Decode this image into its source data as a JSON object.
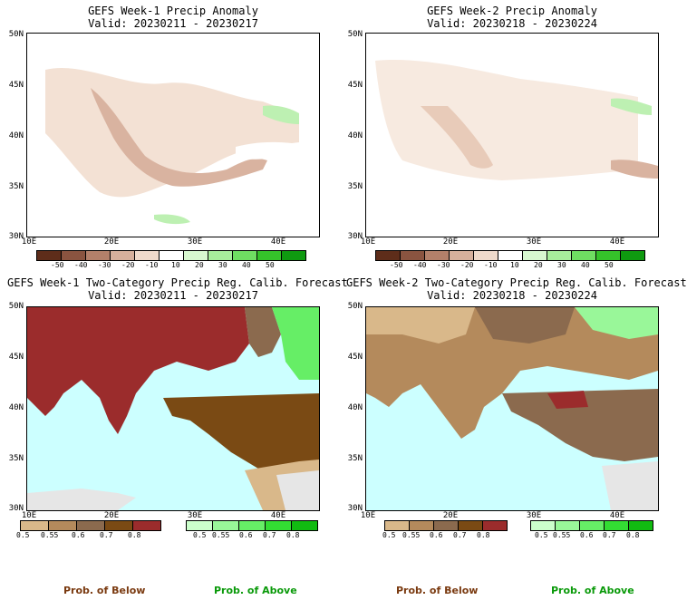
{
  "panels": [
    {
      "title": "GEFS Week-1 Precip Anomaly",
      "valid": "Valid: 20230211 - 20230217"
    },
    {
      "title": "GEFS Week-2 Precip Anomaly",
      "valid": "Valid: 20230218 - 20230224"
    },
    {
      "title": "GEFS Week-1 Two-Category Precip Reg. Calib. Forecast",
      "valid": "Valid: 20230211 - 20230217"
    },
    {
      "title": "GEFS Week-2 Two-Category Precip Reg. Calib. Forecast",
      "valid": "Valid: 20230218 - 20230224"
    }
  ],
  "lat_labels": [
    "50N",
    "45N",
    "40N",
    "35N",
    "30N"
  ],
  "lon_labels": [
    "10E",
    "20E",
    "30E",
    "40E"
  ],
  "anomaly_scale": {
    "labels": [
      "-50",
      "-40",
      "-30",
      "-20",
      "-10",
      "10",
      "20",
      "30",
      "40",
      "50"
    ],
    "colors": [
      "#5e2d1a",
      "#8a5440",
      "#b3806a",
      "#d6b09c",
      "#efdacb",
      "#ffffff",
      "#d8f8d0",
      "#a8ee9c",
      "#6fde62",
      "#35c22a",
      "#0f9a10"
    ]
  },
  "prob_scale": {
    "below_labels": [
      "0.5",
      "0.55",
      "0.6",
      "0.7",
      "0.8"
    ],
    "above_labels": [
      "0.5",
      "0.55",
      "0.6",
      "0.7",
      "0.8"
    ],
    "below_colors": [
      "#d9b88a",
      "#b48a5c",
      "#8b6a4e",
      "#7a4a14",
      "#9b2c2c"
    ],
    "above_colors": [
      "#ccffcc",
      "#99f799",
      "#66ee66",
      "#33dd33",
      "#11bb11"
    ]
  },
  "legend": {
    "below": "Prob. of Below",
    "above": "Prob. of Above"
  },
  "legend_colors": {
    "below": "#7a3a10",
    "above": "#0a9a0a"
  }
}
